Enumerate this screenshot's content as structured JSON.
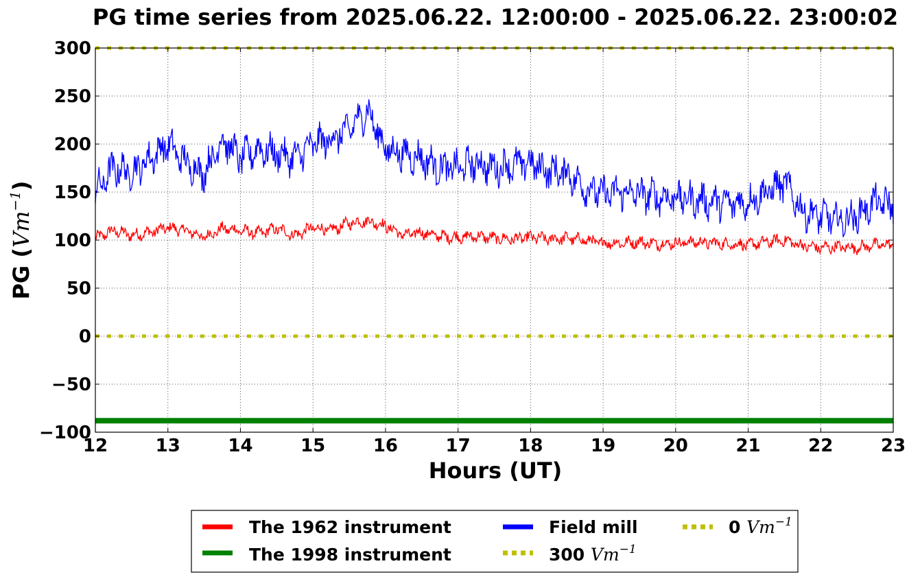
{
  "chart_data": {
    "type": "line",
    "title": "PG time series from 2025.06.22. 12:00:00 - 2025.06.22. 23:00:02",
    "xlabel": "Hours (UT)",
    "ylabel_main": "PG (",
    "ylabel_unit": "Vm",
    "ylabel_exp": "−1",
    "ylabel_close": ")",
    "xlim": [
      12,
      23
    ],
    "ylim": [
      -100,
      300
    ],
    "xticks": [
      12,
      13,
      14,
      15,
      16,
      17,
      18,
      19,
      20,
      21,
      22,
      23
    ],
    "yticks": [
      300,
      250,
      200,
      150,
      100,
      50,
      0,
      -50,
      -100
    ],
    "ytick_labels": [
      "300",
      "250",
      "200",
      "150",
      "100",
      "50",
      "0",
      "−50",
      "−100"
    ],
    "grid": true,
    "legend_position": "bottom-outside",
    "colors": {
      "red": "#ff0000",
      "blue": "#0000ff",
      "green": "#008000",
      "yellow": "#bfbf00"
    },
    "series": [
      {
        "name": "The 1962 instrument",
        "color": "#ff0000",
        "x": [
          12.0,
          12.25,
          12.5,
          12.75,
          13.0,
          13.25,
          13.5,
          13.75,
          14.0,
          14.25,
          14.5,
          14.75,
          15.0,
          15.25,
          15.5,
          15.75,
          16.0,
          16.25,
          16.5,
          16.75,
          17.0,
          17.25,
          17.5,
          17.75,
          18.0,
          18.25,
          18.5,
          18.75,
          19.0,
          19.25,
          19.5,
          19.75,
          20.0,
          20.25,
          20.5,
          20.75,
          21.0,
          21.25,
          21.5,
          21.75,
          22.0,
          22.25,
          22.5,
          22.75,
          23.0
        ],
        "y": [
          102,
          110,
          105,
          108,
          113,
          110,
          103,
          112,
          110,
          107,
          112,
          105,
          113,
          110,
          118,
          120,
          115,
          105,
          108,
          104,
          103,
          104,
          102,
          101,
          103,
          101,
          102,
          100,
          97,
          97,
          98,
          96,
          97,
          98,
          97,
          96,
          95,
          98,
          100,
          94,
          92,
          93,
          92,
          95,
          95
        ]
      },
      {
        "name": "Field mill",
        "color": "#0000ff",
        "x": [
          12.0,
          12.25,
          12.5,
          12.75,
          13.0,
          13.25,
          13.5,
          13.75,
          14.0,
          14.25,
          14.5,
          14.75,
          15.0,
          15.25,
          15.5,
          15.75,
          16.0,
          16.25,
          16.5,
          16.75,
          17.0,
          17.25,
          17.5,
          17.75,
          18.0,
          18.25,
          18.5,
          18.75,
          19.0,
          19.25,
          19.5,
          19.75,
          20.0,
          20.25,
          20.5,
          20.75,
          21.0,
          21.25,
          21.5,
          21.75,
          22.0,
          22.25,
          22.5,
          22.75,
          23.0
        ],
        "y": [
          150,
          175,
          170,
          185,
          200,
          180,
          170,
          205,
          185,
          195,
          190,
          185,
          200,
          205,
          215,
          235,
          195,
          190,
          185,
          175,
          175,
          180,
          175,
          178,
          180,
          172,
          170,
          155,
          148,
          150,
          148,
          145,
          145,
          142,
          140,
          138,
          140,
          150,
          160,
          130,
          125,
          120,
          125,
          140,
          135
        ]
      },
      {
        "name": "The 1998 instrument",
        "color": "#008000",
        "x": [
          12,
          23
        ],
        "y": [
          -88,
          -88
        ]
      },
      {
        "name": "300 Vm⁻¹",
        "color": "#bfbf00",
        "x": [
          12,
          23
        ],
        "y": [
          300,
          300
        ]
      },
      {
        "name": "0 Vm⁻¹",
        "color": "#bfbf00",
        "x": [
          12,
          23
        ],
        "y": [
          0,
          0
        ]
      }
    ],
    "legend": {
      "entries": [
        {
          "label": "The 1962 instrument",
          "color": "#ff0000",
          "style": "solid"
        },
        {
          "label": "The 1998 instrument",
          "color": "#008000",
          "style": "solid"
        },
        {
          "label": "Field mill",
          "color": "#0000ff",
          "style": "solid"
        },
        {
          "label": "300",
          "unit": "Vm",
          "exp": "−1",
          "color": "#bfbf00",
          "style": "dotted"
        },
        {
          "label": "0",
          "unit": "Vm",
          "exp": "−1",
          "color": "#bfbf00",
          "style": "dotted"
        }
      ]
    }
  }
}
